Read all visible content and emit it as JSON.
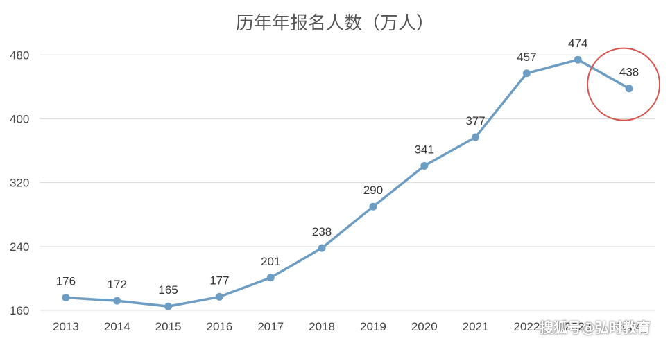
{
  "chart_data": {
    "type": "line",
    "title": "历年年报名人数（万人）",
    "categories": [
      "2013",
      "2014",
      "2015",
      "2016",
      "2017",
      "2018",
      "2019",
      "2020",
      "2021",
      "2022",
      "2023",
      "2024"
    ],
    "series": [
      {
        "values": [
          176,
          172,
          165,
          177,
          201,
          238,
          290,
          341,
          377,
          457,
          474,
          438
        ]
      }
    ],
    "yticks": [
      160,
      240,
      320,
      400,
      480
    ],
    "ylim": [
      160,
      495
    ],
    "grid": true,
    "highlight": {
      "category": "2024",
      "shape": "circle"
    }
  },
  "colors": {
    "line": "#6e9dc4",
    "marker": "#6e9dc4",
    "grid": "#d9d9d9",
    "highlight": "#d9534f"
  },
  "watermark": "搜狐号@弘时教育"
}
